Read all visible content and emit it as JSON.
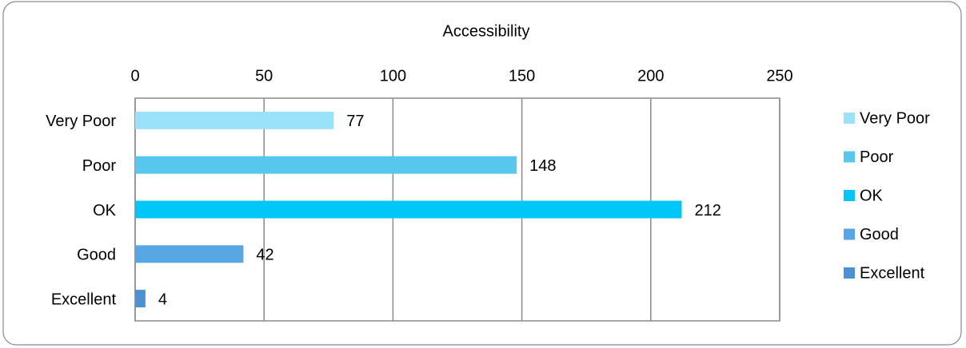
{
  "chart_data": {
    "type": "bar",
    "orientation": "horizontal",
    "title": "Accessibility",
    "categories": [
      "Very Poor",
      "Poor",
      "OK",
      "Good",
      "Excellent"
    ],
    "values": [
      77,
      148,
      212,
      42,
      4
    ],
    "colors": [
      "#99e2fa",
      "#57c7ee",
      "#00c7f7",
      "#56a7e3",
      "#4a91d5"
    ],
    "xlim": [
      0,
      250
    ],
    "xticks": [
      0,
      50,
      100,
      150,
      200,
      250
    ],
    "grid": true,
    "legend": "right"
  }
}
